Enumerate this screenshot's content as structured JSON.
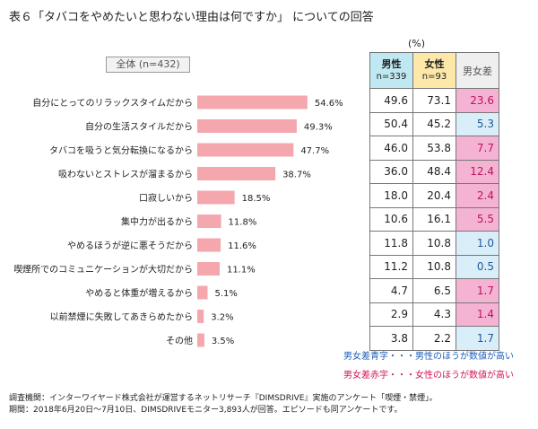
{
  "title": "表６「タバコをやめたいと思わない理由は何ですか」 についての回答",
  "percent_unit": "(%)",
  "overall_label": "全体 (n=432)",
  "table_header": {
    "male": "男性",
    "male_n": "n=339",
    "female": "女性",
    "female_n": "n=93",
    "diff": "男女差"
  },
  "legend": {
    "blue": "男女差青字・・・男性のほうが数値が高い",
    "red": "男女差赤字・・・女性のほうが数値が高い"
  },
  "footer": {
    "line1": "調査機関：インターワイヤード株式会社が運営するネットリサーチ『DIMSDRIVE』実施のアンケート「喫煙・禁煙」。",
    "line2": "期間：2018年6月20日～7月10日、DIMSDRIVEモニター3,893人が回答。エピソードも同アンケートです。"
  },
  "colors": {
    "bar": "#f4a7ac",
    "male_header": "#bfe8f2",
    "female_header": "#fde7a9",
    "diff_blue_bg": "#d9eef8",
    "diff_red_bg": "#f4b3d3",
    "blue_text": "#1f5db8",
    "red_text": "#d4145a"
  },
  "chart_data": {
    "type": "bar",
    "orientation": "horizontal",
    "categories": [
      "自分にとってのリラックスタイムだから",
      "自分の生活スタイルだから",
      "タバコを吸うと気分転換になるから",
      "吸わないとストレスが溜まるから",
      "口寂しいから",
      "集中力が出るから",
      "やめるほうが逆に悪そうだから",
      "喫煙所でのコミュニケーションが大切だから",
      "やめると体重が増えるから",
      "以前禁煙に失敗してあきらめたから",
      "その他"
    ],
    "values": [
      54.6,
      49.3,
      47.7,
      38.7,
      18.5,
      11.8,
      11.6,
      11.1,
      5.1,
      3.2,
      3.5
    ],
    "value_labels": [
      "54.6%",
      "49.3%",
      "47.7%",
      "38.7%",
      "18.5%",
      "11.8%",
      "11.6%",
      "11.1%",
      "5.1%",
      "3.2%",
      "3.5%"
    ],
    "xlim": [
      0,
      100
    ],
    "grid": false,
    "legend": "none",
    "table": {
      "male": [
        "49.6",
        "50.4",
        "46.0",
        "36.0",
        "18.0",
        "10.6",
        "11.8",
        "11.2",
        "4.7",
        "2.9",
        "3.8"
      ],
      "female": [
        "73.1",
        "45.2",
        "53.8",
        "48.4",
        "20.4",
        "16.1",
        "10.8",
        "10.8",
        "6.5",
        "4.3",
        "2.2"
      ],
      "diff": [
        "23.6",
        "5.3",
        "7.7",
        "12.4",
        "2.4",
        "5.5",
        "1.0",
        "0.5",
        "1.7",
        "1.4",
        "1.7"
      ],
      "diff_higher": [
        "female",
        "male",
        "female",
        "female",
        "female",
        "female",
        "male",
        "male",
        "female",
        "female",
        "male"
      ]
    }
  }
}
